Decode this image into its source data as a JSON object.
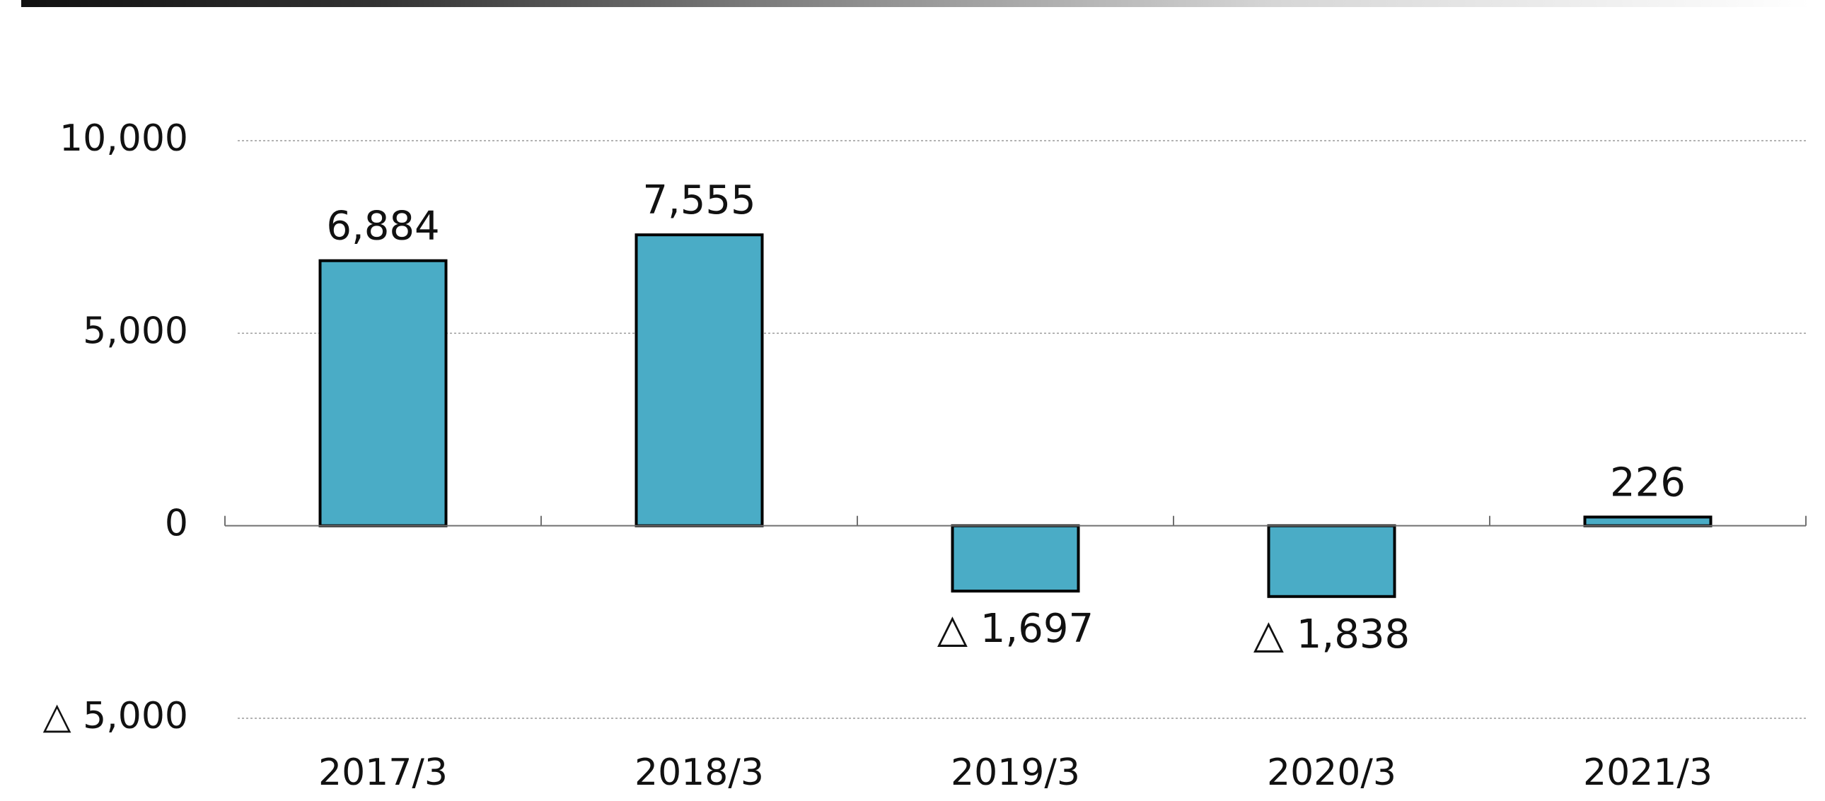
{
  "chart_data": {
    "type": "bar",
    "categories": [
      "2017/3",
      "2018/3",
      "2019/3",
      "2020/3",
      "2021/3"
    ],
    "values": [
      6884,
      7555,
      -1697,
      -1838,
      226
    ],
    "data_labels": [
      "6,884",
      "7,555",
      "△ 1,697",
      "△ 1,838",
      "226"
    ],
    "y_ticks": [
      {
        "value": 10000,
        "label": "10,000"
      },
      {
        "value": 5000,
        "label": "5,000"
      },
      {
        "value": 0,
        "label": "0"
      },
      {
        "value": -5000,
        "label": "△ 5,000"
      }
    ],
    "ylim": [
      -5000,
      10000
    ],
    "grid": true,
    "title": "",
    "xlabel": "",
    "ylabel": "",
    "colors": {
      "bar_fill": "#4aacc6",
      "bar_stroke": "#000000",
      "grid": "#9a9a9a",
      "axis": "#707070"
    }
  }
}
